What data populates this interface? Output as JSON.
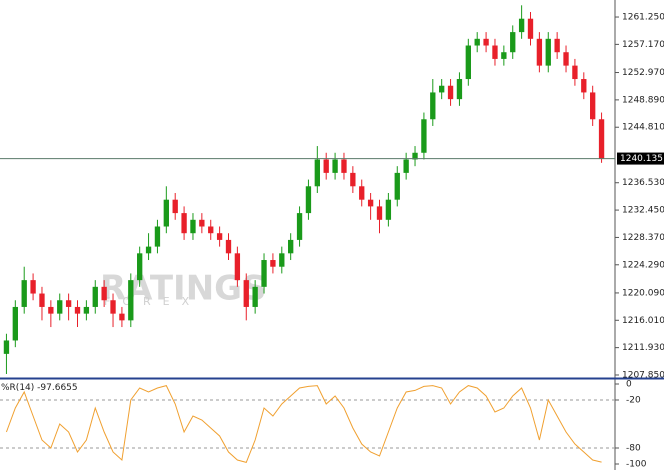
{
  "watermark": {
    "title": "RATINGS",
    "subtitle": "FOREX"
  },
  "chart_data": [
    {
      "type": "candlestick",
      "up_color": "#1a9a1a",
      "down_color": "#e8202a",
      "open": [
        1211,
        1213,
        1218,
        1222,
        1220,
        1218,
        1217,
        1219,
        1218,
        1217,
        1218,
        1221,
        1219,
        1217,
        1216,
        1222,
        1226,
        1227,
        1230,
        1234,
        1232,
        1229,
        1231,
        1230,
        1229,
        1228,
        1226,
        1222,
        1218,
        1221,
        1225,
        1224,
        1226,
        1228,
        1232,
        1236,
        1240,
        1238,
        1240,
        1238,
        1236,
        1234,
        1233,
        1231,
        1234,
        1238,
        1240,
        1241,
        1246,
        1250,
        1251,
        1249,
        1252,
        1257,
        1258,
        1257,
        1255,
        1256,
        1259,
        1261,
        1258,
        1254,
        1258,
        1256,
        1254,
        1252,
        1250,
        1246
      ],
      "high": [
        1214,
        1219,
        1224,
        1223,
        1221,
        1219,
        1220,
        1220,
        1219,
        1219,
        1222,
        1222,
        1220,
        1218,
        1223,
        1227,
        1229,
        1231,
        1236,
        1235,
        1233,
        1232,
        1232,
        1231,
        1230,
        1229,
        1227,
        1223,
        1222,
        1226,
        1226,
        1227,
        1229,
        1233,
        1237,
        1242,
        1241,
        1241,
        1241,
        1239,
        1237,
        1235,
        1234,
        1235,
        1239,
        1241,
        1242,
        1247,
        1252,
        1252,
        1252,
        1253,
        1258,
        1259,
        1259,
        1258,
        1257,
        1260,
        1263,
        1262,
        1259,
        1259,
        1259,
        1257,
        1255,
        1253,
        1251,
        1247
      ],
      "low": [
        1208,
        1212,
        1217,
        1219,
        1216,
        1215,
        1216,
        1216,
        1215,
        1216,
        1217,
        1218,
        1215,
        1215,
        1215,
        1221,
        1225,
        1226,
        1229,
        1231,
        1228,
        1228,
        1229,
        1228,
        1227,
        1225,
        1221,
        1216,
        1217,
        1220,
        1223,
        1223,
        1225,
        1227,
        1231,
        1235,
        1237,
        1237,
        1237,
        1235,
        1233,
        1231,
        1229,
        1230,
        1233,
        1237,
        1239,
        1240,
        1245,
        1249,
        1248,
        1248,
        1251,
        1256,
        1256,
        1254,
        1254,
        1255,
        1258,
        1257,
        1253,
        1253,
        1255,
        1253,
        1251,
        1249,
        1245,
        1239.5
      ],
      "close": [
        1213,
        1218,
        1222,
        1220,
        1218,
        1217,
        1219,
        1218,
        1217,
        1218,
        1221,
        1219,
        1217,
        1216,
        1222,
        1226,
        1227,
        1230,
        1234,
        1232,
        1229,
        1231,
        1230,
        1229,
        1228,
        1226,
        1222,
        1218,
        1221,
        1225,
        1224,
        1226,
        1228,
        1232,
        1236,
        1240,
        1238,
        1240,
        1238,
        1236,
        1234,
        1233,
        1231,
        1234,
        1238,
        1240,
        1241,
        1246,
        1250,
        1251,
        1249,
        1252,
        1257,
        1258,
        1257,
        1255,
        1256,
        1259,
        1261,
        1258,
        1254,
        1258,
        1256,
        1254,
        1252,
        1250,
        1246,
        1240.135
      ],
      "current_price": 1240.135,
      "ylim": [
        1207.4,
        1263.79
      ],
      "yticks": [
        {
          "value": 1261.25,
          "label": "1261.250"
        },
        {
          "value": 1257.17,
          "label": "1257.170"
        },
        {
          "value": 1252.97,
          "label": "1252.970"
        },
        {
          "value": 1248.89,
          "label": "1248.890"
        },
        {
          "value": 1244.81,
          "label": "1244.810"
        },
        {
          "value": 1236.53,
          "label": "1236.530"
        },
        {
          "value": 1232.45,
          "label": "1232.450"
        },
        {
          "value": 1228.37,
          "label": "1228.370"
        },
        {
          "value": 1224.29,
          "label": "1224.290"
        },
        {
          "value": 1220.09,
          "label": "1220.090"
        },
        {
          "value": 1216.01,
          "label": "1216.010"
        },
        {
          "value": 1211.93,
          "label": "1211.930"
        },
        {
          "value": 1207.85,
          "label": "1207.850"
        }
      ]
    },
    {
      "type": "line",
      "title": "%R(14)",
      "color": "#f0a030",
      "values": [
        -60,
        -30,
        -10,
        -40,
        -70,
        -80,
        -50,
        -60,
        -85,
        -70,
        -30,
        -60,
        -85,
        -95,
        -20,
        -5,
        -10,
        -5,
        -2,
        -25,
        -60,
        -40,
        -45,
        -55,
        -65,
        -85,
        -95,
        -98,
        -70,
        -30,
        -40,
        -25,
        -15,
        -5,
        -3,
        -2,
        -25,
        -15,
        -30,
        -55,
        -75,
        -85,
        -90,
        -60,
        -30,
        -10,
        -8,
        -3,
        -2,
        -5,
        -25,
        -10,
        -2,
        -5,
        -15,
        -35,
        -30,
        -15,
        -5,
        -30,
        -70,
        -20,
        -40,
        -60,
        -75,
        -85,
        -95,
        -97.6655
      ],
      "ylim": [
        -107.5,
        5
      ],
      "yticks": [
        0,
        -20,
        -80,
        -100
      ],
      "grid_lines": [
        -20,
        -80
      ]
    }
  ]
}
